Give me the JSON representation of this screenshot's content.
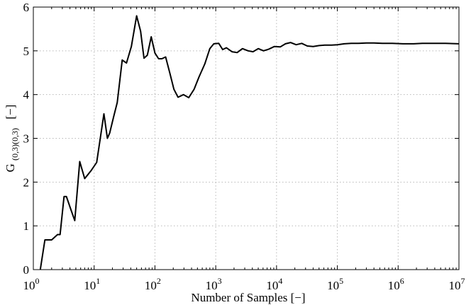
{
  "chart_data": {
    "type": "line",
    "xscale": "log",
    "xlabel": "Number of Samples [−]",
    "ylabel_main": "G",
    "ylabel_sub": "(0,3)(0,3)",
    "ylabel_unit": "[−]",
    "xlim": [
      1,
      10000000
    ],
    "ylim": [
      0,
      6
    ],
    "grid": true,
    "x_ticks": [
      {
        "value": 1,
        "base": "10",
        "exp": "0"
      },
      {
        "value": 10,
        "base": "10",
        "exp": "1"
      },
      {
        "value": 100,
        "base": "10",
        "exp": "2"
      },
      {
        "value": 1000,
        "base": "10",
        "exp": "3"
      },
      {
        "value": 10000,
        "base": "10",
        "exp": "4"
      },
      {
        "value": 100000,
        "base": "10",
        "exp": "5"
      },
      {
        "value": 1000000,
        "base": "10",
        "exp": "6"
      },
      {
        "value": 10000000,
        "base": "10",
        "exp": "7"
      }
    ],
    "y_ticks": [
      {
        "value": 0,
        "label": "0"
      },
      {
        "value": 1,
        "label": "1"
      },
      {
        "value": 2,
        "label": "2"
      },
      {
        "value": 3,
        "label": "3"
      },
      {
        "value": 4,
        "label": "4"
      },
      {
        "value": 5,
        "label": "5"
      },
      {
        "value": 6,
        "label": "6"
      }
    ],
    "series": [
      {
        "color": "#000000",
        "x": [
          1.3,
          1.55,
          2.0,
          2.5,
          2.75,
          3.2,
          3.5,
          4.2,
          4.8,
          5.8,
          7.0,
          9.0,
          11.0,
          14.5,
          16.5,
          18.0,
          21.0,
          24.0,
          29.0,
          34.0,
          41.0,
          50.0,
          58.0,
          66.0,
          75.0,
          87.0,
          100.0,
          115.0,
          130.0,
          150.0,
          175.0,
          205.0,
          240.0,
          295.0,
          360.0,
          440.0,
          530.0,
          660.0,
          800.0,
          930.0,
          1120.0,
          1300.0,
          1500.0,
          1850.0,
          2250.0,
          2750.0,
          3400.0,
          4100.0,
          5000.0,
          6100.0,
          7500.0,
          9200.0,
          11500.0,
          14000.0,
          17000.0,
          21000.0,
          26000.0,
          32000.0,
          40000.0,
          50000.0,
          62000.0,
          80000.0,
          100000.0,
          130000.0,
          170000.0,
          220000.0,
          300000.0,
          400000.0,
          550000.0,
          800000.0,
          1200000.0,
          1800000.0,
          2500000.0,
          4000000.0,
          6000000.0,
          10000000.0
        ],
        "y": [
          0.0,
          0.68,
          0.68,
          0.8,
          0.8,
          1.67,
          1.67,
          1.35,
          1.12,
          2.47,
          2.08,
          2.27,
          2.45,
          3.56,
          3.0,
          3.12,
          3.5,
          3.82,
          4.79,
          4.72,
          5.1,
          5.8,
          5.45,
          4.83,
          4.9,
          5.32,
          4.95,
          4.82,
          4.82,
          4.86,
          4.5,
          4.12,
          3.94,
          4.0,
          3.93,
          4.12,
          4.4,
          4.7,
          5.05,
          5.16,
          5.17,
          5.03,
          5.07,
          4.98,
          4.96,
          5.05,
          5.0,
          4.98,
          5.05,
          5.0,
          5.04,
          5.1,
          5.09,
          5.16,
          5.19,
          5.14,
          5.17,
          5.11,
          5.1,
          5.12,
          5.13,
          5.13,
          5.14,
          5.16,
          5.17,
          5.17,
          5.18,
          5.18,
          5.17,
          5.17,
          5.16,
          5.16,
          5.17,
          5.17,
          5.17,
          5.16
        ]
      }
    ]
  }
}
